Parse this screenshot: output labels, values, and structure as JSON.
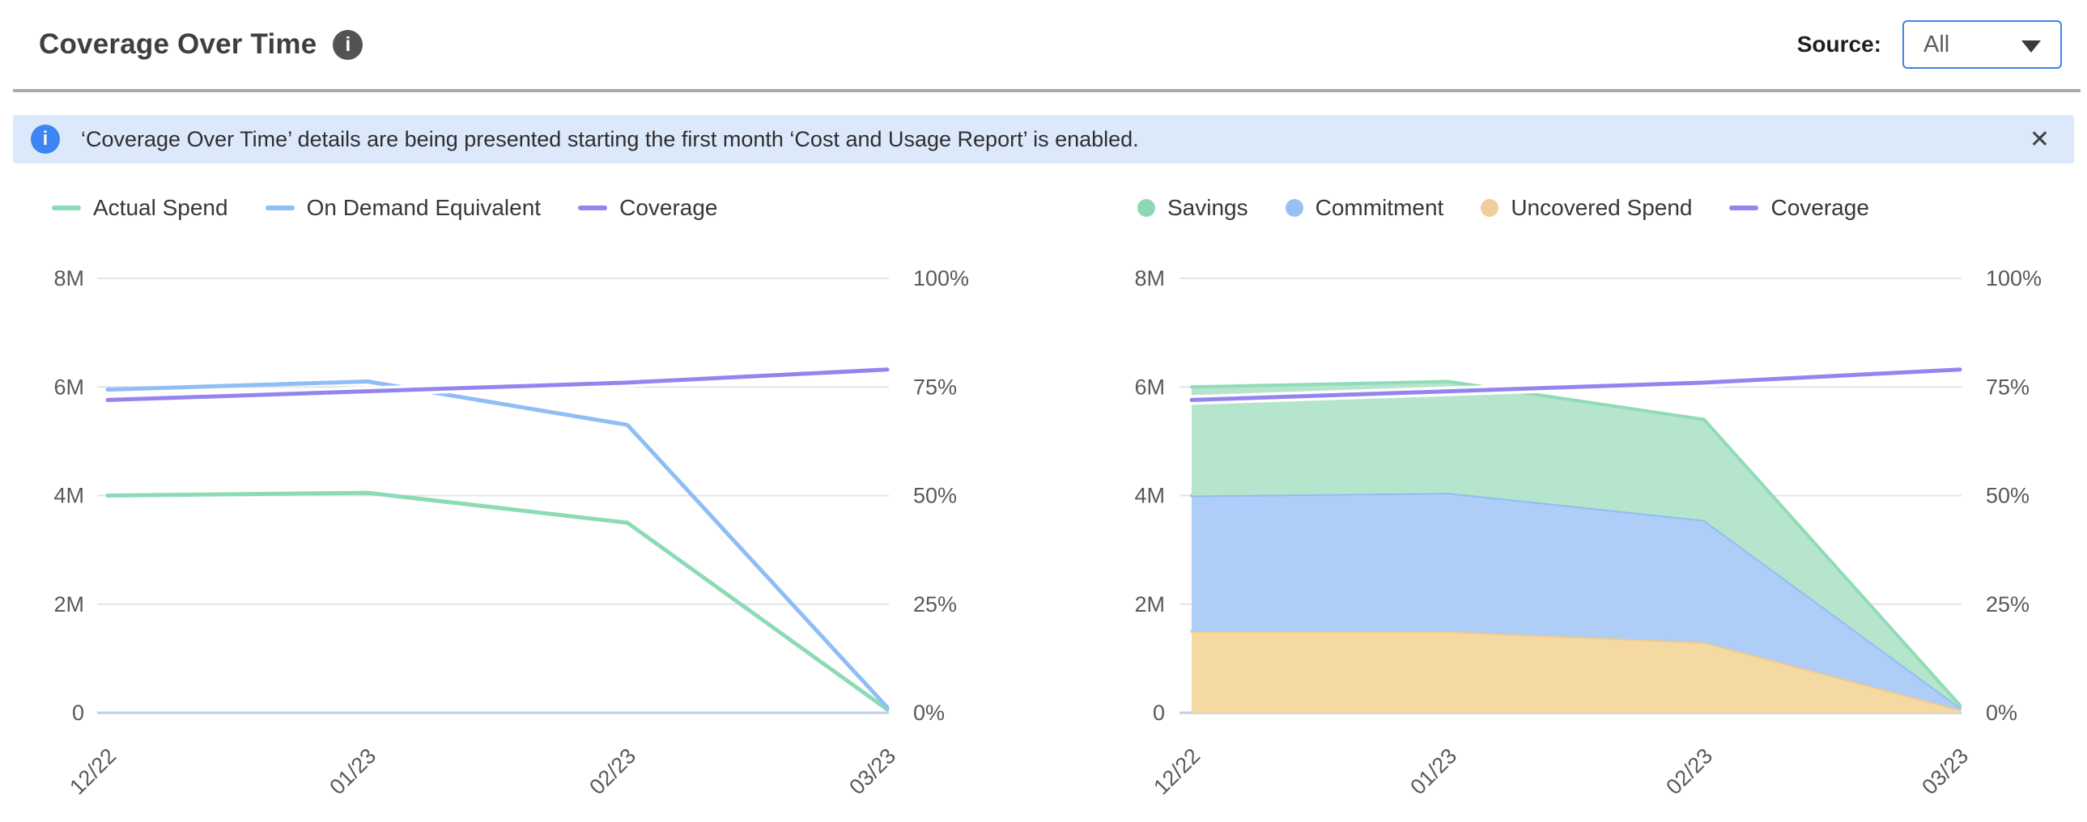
{
  "header": {
    "title": "Coverage Over Time",
    "info_icon": "i",
    "source_label": "Source:",
    "source_value": "All"
  },
  "banner": {
    "info_icon": "i",
    "message": "‘Coverage Over Time’ details are being presented starting the first month ‘Cost and Usage Report’ is enabled.",
    "close_icon": "✕"
  },
  "chart_data": [
    {
      "name": "Coverage Over Time - lines",
      "type": "line",
      "categories": [
        "12/22",
        "01/23",
        "02/23",
        "03/23"
      ],
      "y_axis_left": {
        "labels": [
          "8M",
          "6M",
          "4M",
          "2M",
          "0"
        ],
        "min": 0,
        "max": 8000000,
        "units": "USD"
      },
      "y_axis_right": {
        "labels": [
          "100%",
          "75%",
          "50%",
          "25%",
          "0%"
        ],
        "min": 0,
        "max": 100,
        "units": "%"
      },
      "grid": true,
      "legend_position": "top-left",
      "series": [
        {
          "name": "Actual Spend",
          "type": "line",
          "axis": "left",
          "units": "M",
          "swatch": "line",
          "color": "#8BDBB4",
          "values": [
            4.0,
            4.05,
            3.5,
            0.06
          ]
        },
        {
          "name": "On Demand Equivalent",
          "type": "line",
          "axis": "left",
          "units": "M",
          "swatch": "line",
          "color": "#8FBDF5",
          "values": [
            5.95,
            6.1,
            5.3,
            0.1
          ]
        },
        {
          "name": "Coverage",
          "type": "line",
          "axis": "right",
          "units": "%",
          "swatch": "line",
          "halo": true,
          "color": "#9384F0",
          "values": [
            72,
            74,
            76,
            79
          ]
        }
      ]
    },
    {
      "name": "Coverage Over Time - stacked areas",
      "type": "area",
      "categories": [
        "12/22",
        "01/23",
        "02/23",
        "03/23"
      ],
      "y_axis_left": {
        "labels": [
          "8M",
          "6M",
          "4M",
          "2M",
          "0"
        ],
        "min": 0,
        "max": 8000000,
        "units": "USD"
      },
      "y_axis_right": {
        "labels": [
          "100%",
          "75%",
          "50%",
          "25%",
          "0%"
        ],
        "min": 0,
        "max": 100,
        "units": "%"
      },
      "grid": true,
      "legend_position": "top-left",
      "series": [
        {
          "name": "Savings",
          "type": "area",
          "stack_index": 2,
          "axis": "left",
          "units": "M",
          "swatch": "dot",
          "color": "#8CD9B1",
          "fill": "#B5E5CC",
          "stroke": "#8FDCB7",
          "values": [
            2.0,
            2.05,
            1.85,
            0.04
          ]
        },
        {
          "name": "Commitment",
          "type": "area",
          "stack_index": 1,
          "axis": "left",
          "units": "M",
          "swatch": "dot",
          "color": "#97C1F5",
          "fill": "#AECDF7",
          "stroke": "#90BEF3",
          "values": [
            2.5,
            2.55,
            2.25,
            0.04
          ]
        },
        {
          "name": "Uncovered Spend",
          "type": "area",
          "stack_index": 0,
          "axis": "left",
          "units": "M",
          "swatch": "dot",
          "color": "#F0CE9B",
          "fill": "#F5D9A3",
          "stroke": "#EECA90",
          "values": [
            1.5,
            1.5,
            1.3,
            0.06
          ]
        },
        {
          "name": "Coverage",
          "type": "line",
          "axis": "right",
          "units": "%",
          "swatch": "line",
          "halo": true,
          "color": "#9384F0",
          "values": [
            72,
            74,
            76,
            79
          ]
        }
      ]
    }
  ]
}
